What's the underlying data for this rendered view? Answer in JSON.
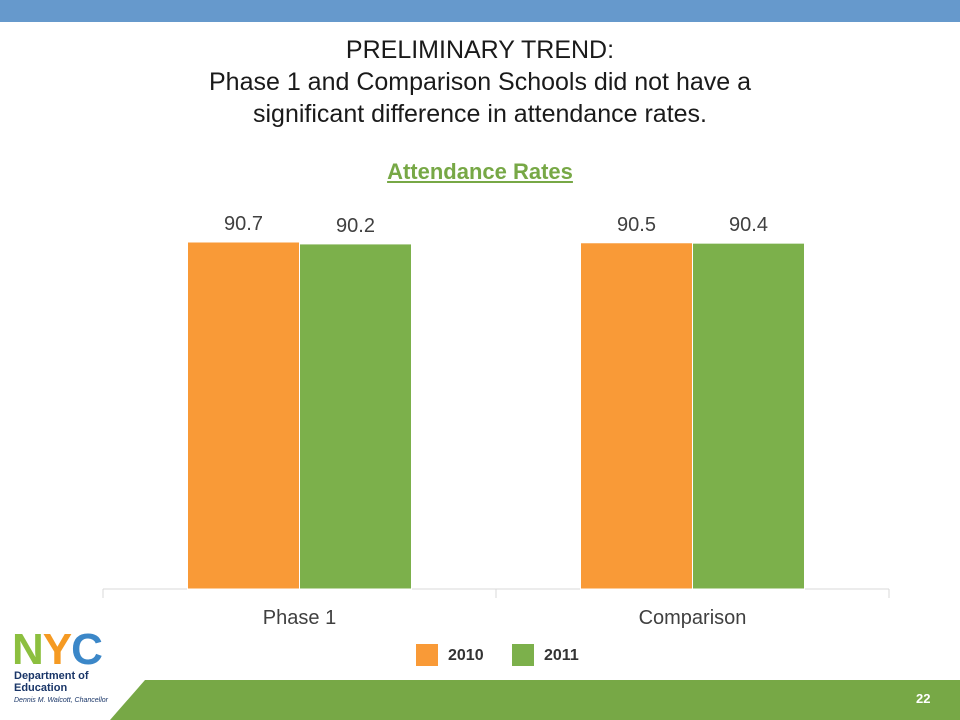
{
  "slide": {
    "title_line1": "PRELIMINARY TREND:",
    "title_line2": "Phase 1 and Comparison Schools did not have a",
    "title_line3": "significant difference in attendance rates.",
    "page_number": "22"
  },
  "logo": {
    "letter1": "N",
    "letter2": "Y",
    "letter3": "C",
    "department": "Department of Education",
    "chancellor": "Dennis M. Walcott, Chancellor"
  },
  "colors": {
    "top_band": "#6699cc",
    "bottom_band": "#77a846",
    "series_2010": "#f99a37",
    "series_2011": "#7cb04b",
    "chart_title": "#77a846"
  },
  "chart_data": {
    "type": "bar",
    "title": "Attendance Rates",
    "categories": [
      "Phase 1",
      "Comparison"
    ],
    "series": [
      {
        "name": "2010",
        "values": [
          90.7,
          90.5
        ]
      },
      {
        "name": "2011",
        "values": [
          90.2,
          90.4
        ]
      }
    ],
    "data_labels": true,
    "legend": "bottom",
    "grid": false
  }
}
